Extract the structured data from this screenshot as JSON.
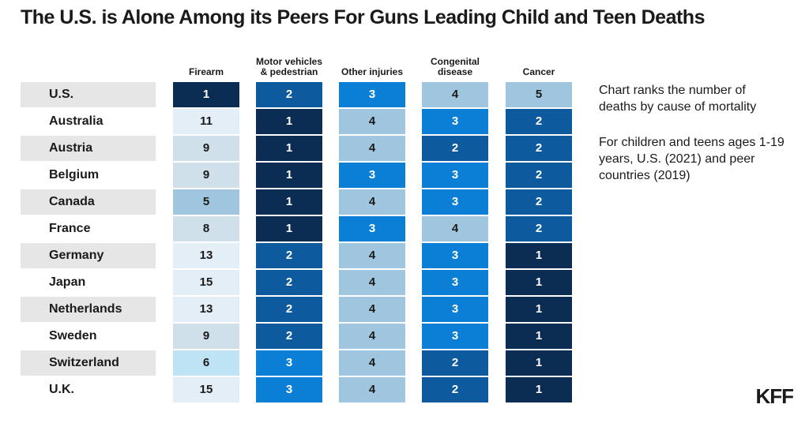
{
  "title": "The U.S. is Alone Among its Peers For Guns Leading Child and Teen Deaths",
  "columns": [
    "Firearm",
    "Motor vehicles & pedestrian",
    "Other injuries",
    "Congenital disease",
    "Cancer"
  ],
  "rows": [
    {
      "country": "U.S.",
      "ranks": [
        1,
        2,
        3,
        4,
        5
      ]
    },
    {
      "country": "Australia",
      "ranks": [
        11,
        1,
        4,
        3,
        2
      ]
    },
    {
      "country": "Austria",
      "ranks": [
        9,
        1,
        4,
        2,
        2
      ]
    },
    {
      "country": "Belgium",
      "ranks": [
        9,
        1,
        3,
        3,
        2
      ]
    },
    {
      "country": "Canada",
      "ranks": [
        5,
        1,
        4,
        3,
        2
      ]
    },
    {
      "country": "France",
      "ranks": [
        8,
        1,
        3,
        4,
        2
      ]
    },
    {
      "country": "Germany",
      "ranks": [
        13,
        2,
        4,
        3,
        1
      ]
    },
    {
      "country": "Japan",
      "ranks": [
        15,
        2,
        4,
        3,
        1
      ]
    },
    {
      "country": "Netherlands",
      "ranks": [
        13,
        2,
        4,
        3,
        1
      ]
    },
    {
      "country": "Sweden",
      "ranks": [
        9,
        2,
        4,
        3,
        1
      ]
    },
    {
      "country": "Switzerland",
      "ranks": [
        6,
        3,
        4,
        2,
        1
      ]
    },
    {
      "country": "U.K.",
      "ranks": [
        15,
        3,
        4,
        2,
        1
      ]
    }
  ],
  "notes": [
    "Chart ranks the number of deaths by cause of mortality",
    "For children and teens ages 1-19 years, U.S. (2021) and peer countries (2019)"
  ],
  "logo": "KFF"
}
